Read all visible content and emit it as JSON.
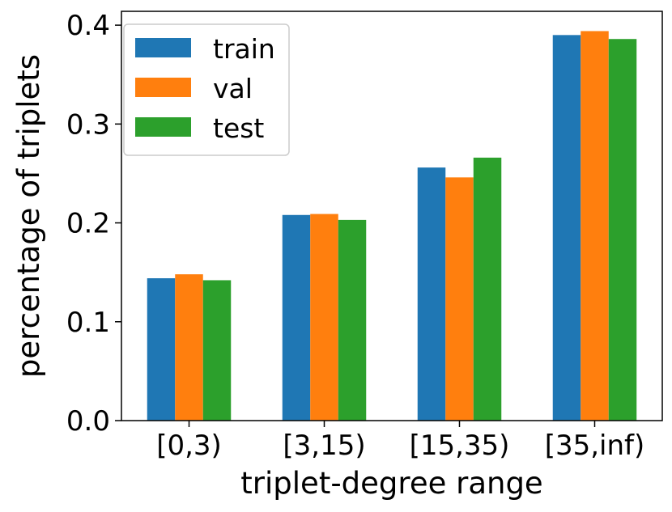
{
  "chart_data": {
    "type": "bar",
    "categories": [
      "[0,3)",
      "[3,15)",
      "[15,35)",
      "[35,inf)"
    ],
    "series": [
      {
        "name": "train",
        "color": "#1f77b4",
        "values": [
          0.144,
          0.208,
          0.256,
          0.39
        ]
      },
      {
        "name": "val",
        "color": "#ff7f0e",
        "values": [
          0.148,
          0.209,
          0.246,
          0.394
        ]
      },
      {
        "name": "test",
        "color": "#2ca02c",
        "values": [
          0.142,
          0.203,
          0.266,
          0.386
        ]
      }
    ],
    "title": "",
    "xlabel": "triplet-degree range",
    "ylabel": "percentage of triplets",
    "ylim": [
      0,
      0.414
    ],
    "yticks": [
      "0.0",
      "0.1",
      "0.2",
      "0.3",
      "0.4"
    ],
    "ytick_values": [
      0,
      0.1,
      0.2,
      0.3,
      0.4
    ],
    "legend_position": "upper-left",
    "grid": false
  }
}
